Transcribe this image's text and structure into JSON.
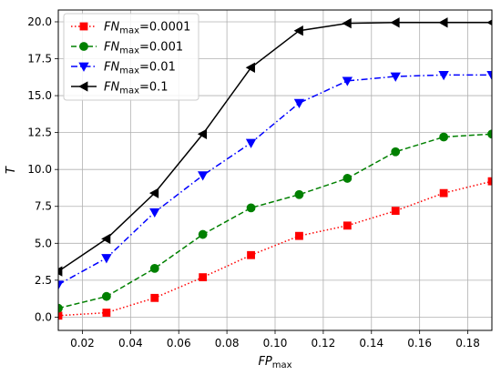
{
  "chart_data": {
    "type": "line",
    "xlabel": "FP",
    "xlabel_sub": "max",
    "ylabel": "T",
    "xlim": [
      0.01,
      0.19
    ],
    "ylim": [
      -0.9,
      20.8
    ],
    "xticks": [
      0.02,
      0.04,
      0.06,
      0.08,
      0.1,
      0.12,
      0.14,
      0.16,
      0.18
    ],
    "xtick_labels": [
      "0.02",
      "0.04",
      "0.06",
      "0.08",
      "0.10",
      "0.12",
      "0.14",
      "0.16",
      "0.18"
    ],
    "yticks": [
      0,
      2.5,
      5,
      7.5,
      10,
      12.5,
      15,
      17.5,
      20
    ],
    "ytick_labels": [
      "0.0",
      "2.5",
      "5.0",
      "7.5",
      "10.0",
      "12.5",
      "15.0",
      "17.5",
      "20.0"
    ],
    "grid": true,
    "legend_position": "top-left",
    "x": [
      0.01,
      0.03,
      0.05,
      0.07,
      0.09,
      0.11,
      0.13,
      0.15,
      0.17,
      0.19
    ],
    "series": [
      {
        "name": "FN",
        "name_sub": "max",
        "name_suffix": "=0.0001",
        "color": "#ff0000",
        "linestyle": "dotted",
        "marker": "square",
        "values": [
          0.1,
          0.3,
          1.3,
          2.7,
          4.2,
          5.5,
          6.2,
          7.2,
          8.4,
          9.2
        ]
      },
      {
        "name": "FN",
        "name_sub": "max",
        "name_suffix": "=0.001",
        "color": "#008000",
        "linestyle": "dashed",
        "marker": "circle",
        "values": [
          0.6,
          1.4,
          3.3,
          5.6,
          7.4,
          8.3,
          9.4,
          11.2,
          12.2,
          12.4
        ]
      },
      {
        "name": "FN",
        "name_sub": "max",
        "name_suffix": "=0.01",
        "color": "#0000ff",
        "linestyle": "dashdot",
        "marker": "triangle-down",
        "values": [
          2.2,
          4.0,
          7.1,
          9.6,
          11.8,
          14.5,
          16.0,
          16.3,
          16.4,
          16.4
        ]
      },
      {
        "name": "FN",
        "name_sub": "max",
        "name_suffix": "=0.1",
        "color": "#000000",
        "linestyle": "solid",
        "marker": "triangle-left",
        "values": [
          3.1,
          5.3,
          8.4,
          12.4,
          16.9,
          19.4,
          19.9,
          19.95,
          19.95,
          19.95
        ]
      }
    ]
  }
}
